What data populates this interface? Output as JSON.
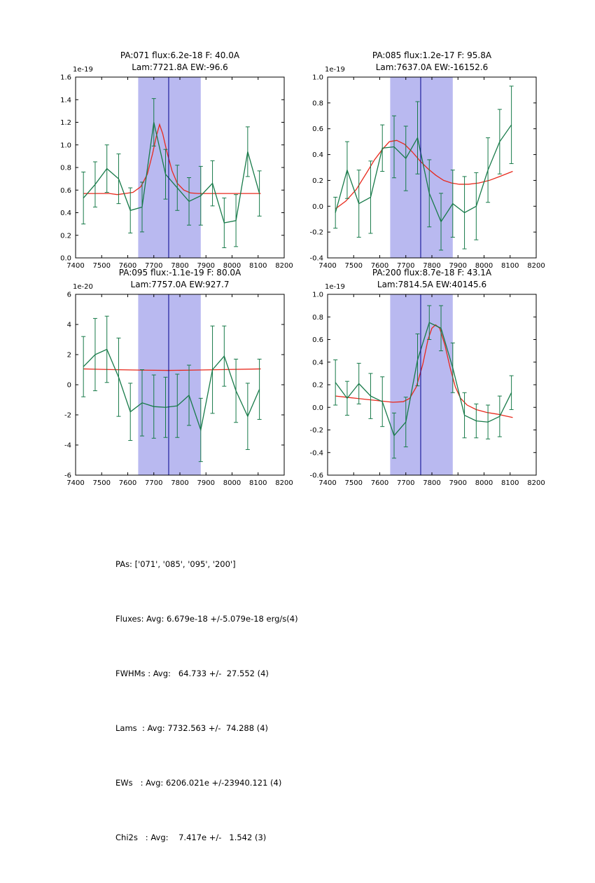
{
  "colors": {
    "data": "#177a49",
    "fit": "#e8291c",
    "band": "#b9b9f0",
    "vline": "#00008b",
    "axis": "#000000"
  },
  "summary": {
    "lines": [
      "PAs: ['071', '085', '095', '200']",
      "Fluxes: Avg: 6.679e-18 +/-5.079e-18 erg/s(4)",
      "FWHMs : Avg:   64.733 +/-  27.552 (4)",
      "Lams  : Avg: 7732.563 +/-  74.288 (4)",
      "EWs   : Avg: 6206.021e +/-23940.121 (4)",
      "Chi2s   : Avg:    7.417e +/-   1.542 (3)"
    ]
  },
  "chart_data": [
    {
      "type": "line",
      "title_line1": "PA:071 flux:6.2e-18 F: 40.0A",
      "title_line2": "Lam:7721.8A EW:-96.6",
      "offset_label": "1e-19",
      "xlim": [
        7400,
        8200
      ],
      "ylim": [
        0.0,
        1.6
      ],
      "xticks": [
        7400,
        7500,
        7600,
        7700,
        7800,
        7900,
        8000,
        8100,
        8200
      ],
      "xtick_labels": [
        "7400",
        "7500",
        "7600",
        "7700",
        "7800",
        "7900",
        "8000",
        "8100",
        "8200"
      ],
      "yticks": [
        0.0,
        0.2,
        0.4,
        0.6,
        0.8,
        1.0,
        1.2,
        1.4,
        1.6
      ],
      "ytick_labels": [
        "0.0",
        "0.2",
        "0.4",
        "0.6",
        "0.8",
        "1.0",
        "1.2",
        "1.4",
        "1.6"
      ],
      "band": [
        7640,
        7880
      ],
      "vline": 7757,
      "data": {
        "x": [
          7430,
          7475,
          7520,
          7565,
          7610,
          7655,
          7700,
          7745,
          7790,
          7835,
          7880,
          7925,
          7970,
          8015,
          8060,
          8105
        ],
        "y": [
          0.53,
          0.65,
          0.79,
          0.7,
          0.42,
          0.45,
          1.2,
          0.74,
          0.62,
          0.5,
          0.55,
          0.66,
          0.31,
          0.33,
          0.94,
          0.57
        ],
        "yerr": [
          0.23,
          0.2,
          0.21,
          0.22,
          0.2,
          0.22,
          0.21,
          0.22,
          0.2,
          0.21,
          0.26,
          0.2,
          0.22,
          0.23,
          0.22,
          0.2
        ]
      },
      "fit": [
        [
          7430,
          0.57
        ],
        [
          7480,
          0.57
        ],
        [
          7530,
          0.57
        ],
        [
          7560,
          0.56
        ],
        [
          7590,
          0.57
        ],
        [
          7620,
          0.58
        ],
        [
          7650,
          0.63
        ],
        [
          7675,
          0.74
        ],
        [
          7695,
          0.92
        ],
        [
          7710,
          1.08
        ],
        [
          7722,
          1.18
        ],
        [
          7734,
          1.1
        ],
        [
          7750,
          0.94
        ],
        [
          7770,
          0.77
        ],
        [
          7790,
          0.66
        ],
        [
          7815,
          0.6
        ],
        [
          7840,
          0.575
        ],
        [
          7870,
          0.57
        ],
        [
          7950,
          0.57
        ],
        [
          8050,
          0.57
        ],
        [
          8110,
          0.57
        ]
      ]
    },
    {
      "type": "line",
      "title_line1": "PA:085 flux:1.2e-17 F: 95.8A",
      "title_line2": "Lam:7637.0A EW:-16152.6",
      "offset_label": "1e-19",
      "xlim": [
        7400,
        8200
      ],
      "ylim": [
        -0.4,
        1.0
      ],
      "xticks": [
        7400,
        7500,
        7600,
        7700,
        7800,
        7900,
        8000,
        8100,
        8200
      ],
      "xtick_labels": [
        "7400",
        "7500",
        "7600",
        "7700",
        "7800",
        "7900",
        "8000",
        "8100",
        "8200"
      ],
      "yticks": [
        -0.4,
        -0.2,
        0.0,
        0.2,
        0.4,
        0.6,
        0.8,
        1.0
      ],
      "ytick_labels": [
        "-0.4",
        "-0.2",
        "0.0",
        "0.2",
        "0.4",
        "0.6",
        "0.8",
        "1.0"
      ],
      "band": [
        7640,
        7880
      ],
      "vline": 7757,
      "data": {
        "x": [
          7430,
          7475,
          7520,
          7565,
          7610,
          7655,
          7700,
          7745,
          7790,
          7835,
          7880,
          7925,
          7970,
          8015,
          8060,
          8105
        ],
        "y": [
          -0.05,
          0.28,
          0.02,
          0.07,
          0.45,
          0.46,
          0.37,
          0.53,
          0.1,
          -0.12,
          0.02,
          -0.05,
          0.0,
          0.28,
          0.5,
          0.63
        ],
        "yerr": [
          0.12,
          0.22,
          0.26,
          0.28,
          0.18,
          0.24,
          0.25,
          0.28,
          0.26,
          0.22,
          0.26,
          0.28,
          0.26,
          0.25,
          0.25,
          0.3
        ]
      },
      "fit": [
        [
          7430,
          -0.02
        ],
        [
          7470,
          0.04
        ],
        [
          7510,
          0.13
        ],
        [
          7550,
          0.26
        ],
        [
          7580,
          0.36
        ],
        [
          7610,
          0.44
        ],
        [
          7637,
          0.5
        ],
        [
          7665,
          0.51
        ],
        [
          7695,
          0.48
        ],
        [
          7725,
          0.42
        ],
        [
          7755,
          0.35
        ],
        [
          7785,
          0.29
        ],
        [
          7815,
          0.24
        ],
        [
          7845,
          0.2
        ],
        [
          7875,
          0.18
        ],
        [
          7905,
          0.17
        ],
        [
          7940,
          0.17
        ],
        [
          7980,
          0.18
        ],
        [
          8020,
          0.2
        ],
        [
          8060,
          0.23
        ],
        [
          8110,
          0.27
        ]
      ]
    },
    {
      "type": "line",
      "title_line1": "PA:095 flux:-1.1e-19 F: 80.0A",
      "title_line2": "Lam:7757.0A EW:927.7",
      "offset_label": "1e-20",
      "xlim": [
        7400,
        8200
      ],
      "ylim": [
        -6,
        6
      ],
      "xticks": [
        7400,
        7500,
        7600,
        7700,
        7800,
        7900,
        8000,
        8100,
        8200
      ],
      "xtick_labels": [
        "7400",
        "7500",
        "7600",
        "7700",
        "7800",
        "7900",
        "8000",
        "8100",
        "8200"
      ],
      "yticks": [
        -6,
        -4,
        -2,
        0,
        2,
        4,
        6
      ],
      "ytick_labels": [
        "-6",
        "-4",
        "-2",
        "0",
        "2",
        "4",
        "6"
      ],
      "band": [
        7640,
        7880
      ],
      "vline": 7757,
      "data": {
        "x": [
          7430,
          7475,
          7520,
          7565,
          7610,
          7655,
          7700,
          7745,
          7790,
          7835,
          7880,
          7925,
          7970,
          8015,
          8060,
          8105
        ],
        "y": [
          1.2,
          2.0,
          2.35,
          0.5,
          -1.8,
          -1.2,
          -1.45,
          -1.5,
          -1.4,
          -0.7,
          -3.0,
          1.0,
          1.9,
          -0.4,
          -2.1,
          -0.3
        ],
        "yerr": [
          2.0,
          2.4,
          2.2,
          2.6,
          1.9,
          2.2,
          2.1,
          2.0,
          2.1,
          2.0,
          2.1,
          2.9,
          2.0,
          2.1,
          2.2,
          2.0
        ]
      },
      "fit": [
        [
          7430,
          1.05
        ],
        [
          7550,
          1.0
        ],
        [
          7650,
          0.97
        ],
        [
          7757,
          0.95
        ],
        [
          7850,
          0.97
        ],
        [
          7950,
          1.0
        ],
        [
          8110,
          1.05
        ]
      ]
    },
    {
      "type": "line",
      "title_line1": "PA:200 flux:8.7e-18 F: 43.1A",
      "title_line2": "Lam:7814.5A EW:40145.6",
      "offset_label": "1e-19",
      "xlim": [
        7400,
        8200
      ],
      "ylim": [
        -0.6,
        1.0
      ],
      "xticks": [
        7400,
        7500,
        7600,
        7700,
        7800,
        7900,
        8000,
        8100,
        8200
      ],
      "xtick_labels": [
        "7400",
        "7500",
        "7600",
        "7700",
        "7800",
        "7900",
        "8000",
        "8100",
        "8200"
      ],
      "yticks": [
        -0.6,
        -0.4,
        -0.2,
        0.0,
        0.2,
        0.4,
        0.6,
        0.8,
        1.0
      ],
      "ytick_labels": [
        "-0.6",
        "-0.4",
        "-0.2",
        "0.0",
        "0.2",
        "0.4",
        "0.6",
        "0.8",
        "1.0"
      ],
      "band": [
        7640,
        7880
      ],
      "vline": 7757,
      "data": {
        "x": [
          7430,
          7475,
          7520,
          7565,
          7610,
          7655,
          7700,
          7745,
          7790,
          7835,
          7880,
          7925,
          7970,
          8015,
          8060,
          8105
        ],
        "y": [
          0.22,
          0.08,
          0.21,
          0.1,
          0.05,
          -0.25,
          -0.13,
          0.42,
          0.75,
          0.7,
          0.35,
          -0.07,
          -0.12,
          -0.13,
          -0.08,
          0.13
        ],
        "yerr": [
          0.2,
          0.15,
          0.18,
          0.2,
          0.22,
          0.2,
          0.22,
          0.23,
          0.15,
          0.2,
          0.22,
          0.2,
          0.15,
          0.15,
          0.18,
          0.15
        ]
      },
      "fit": [
        [
          7430,
          0.1
        ],
        [
          7490,
          0.085
        ],
        [
          7550,
          0.07
        ],
        [
          7610,
          0.055
        ],
        [
          7650,
          0.045
        ],
        [
          7690,
          0.05
        ],
        [
          7715,
          0.08
        ],
        [
          7740,
          0.18
        ],
        [
          7765,
          0.38
        ],
        [
          7785,
          0.6
        ],
        [
          7800,
          0.7
        ],
        [
          7814,
          0.73
        ],
        [
          7830,
          0.7
        ],
        [
          7850,
          0.55
        ],
        [
          7870,
          0.35
        ],
        [
          7890,
          0.18
        ],
        [
          7910,
          0.08
        ],
        [
          7935,
          0.02
        ],
        [
          7970,
          -0.02
        ],
        [
          8010,
          -0.045
        ],
        [
          8050,
          -0.06
        ],
        [
          8080,
          -0.075
        ],
        [
          8110,
          -0.09
        ]
      ]
    }
  ]
}
